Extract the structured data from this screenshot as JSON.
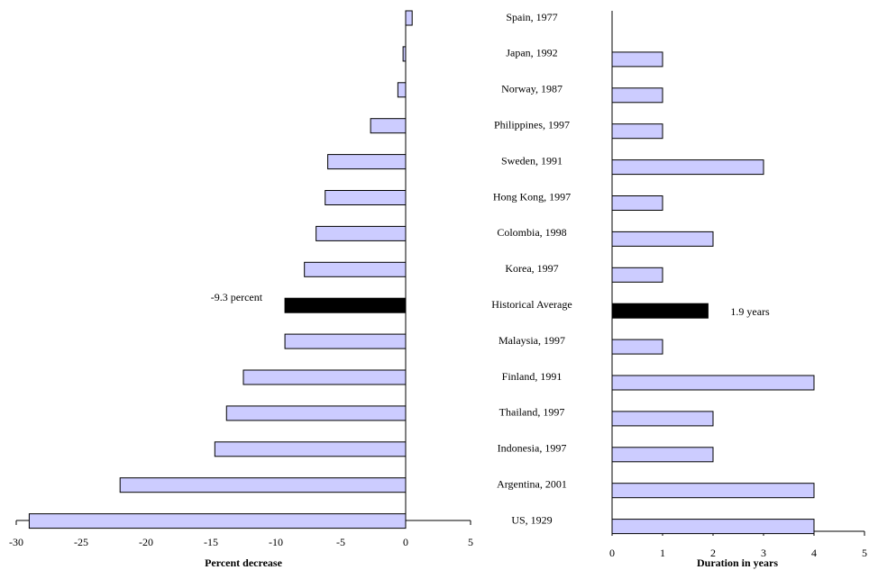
{
  "chart_data": [
    {
      "type": "bar",
      "orientation": "horizontal",
      "categories": [
        "Spain, 1977",
        "Japan, 1992",
        "Norway, 1987",
        "Philippines, 1997",
        "Sweden, 1991",
        "Hong Kong, 1997",
        "Colombia, 1998",
        "Korea, 1997",
        "Historical Average",
        "Malaysia, 1997",
        "Finland, 1991",
        "Thailand, 1997",
        "Indonesia, 1997",
        "Argentina, 2001",
        "US, 1929"
      ],
      "values": [
        0.5,
        -0.2,
        -0.6,
        -2.7,
        -6,
        -6.2,
        -6.9,
        -7.8,
        -9.3,
        -9.3,
        -12.5,
        -13.8,
        -14.7,
        -22,
        -29
      ],
      "colors": [
        "#ccccff",
        "#ccccff",
        "#ccccff",
        "#ccccff",
        "#ccccff",
        "#ccccff",
        "#ccccff",
        "#ccccff",
        "#000000",
        "#ccccff",
        "#ccccff",
        "#ccccff",
        "#ccccff",
        "#ccccff",
        "#ccccff"
      ],
      "xlabel": "Percent decrease",
      "xlim": [
        -30,
        5
      ],
      "xticks": [
        -30,
        -25,
        -20,
        -15,
        -10,
        -5,
        0,
        5
      ],
      "annotations": [
        {
          "text": "-9.3 percent",
          "index": 8
        }
      ]
    },
    {
      "type": "bar",
      "orientation": "horizontal",
      "values": [
        null,
        1,
        1,
        1,
        3,
        1,
        2,
        1,
        1.9,
        1,
        4,
        2,
        2,
        4,
        4
      ],
      "colors": [
        "#ccccff",
        "#ccccff",
        "#ccccff",
        "#ccccff",
        "#ccccff",
        "#ccccff",
        "#ccccff",
        "#ccccff",
        "#000000",
        "#ccccff",
        "#ccccff",
        "#ccccff",
        "#ccccff",
        "#ccccff",
        "#ccccff"
      ],
      "xlabel": "Duration in years",
      "xlim": [
        0,
        5
      ],
      "xticks": [
        0,
        1,
        2,
        3,
        4,
        5
      ],
      "annotations": [
        {
          "text": "1.9 years",
          "index": 8
        }
      ]
    }
  ]
}
